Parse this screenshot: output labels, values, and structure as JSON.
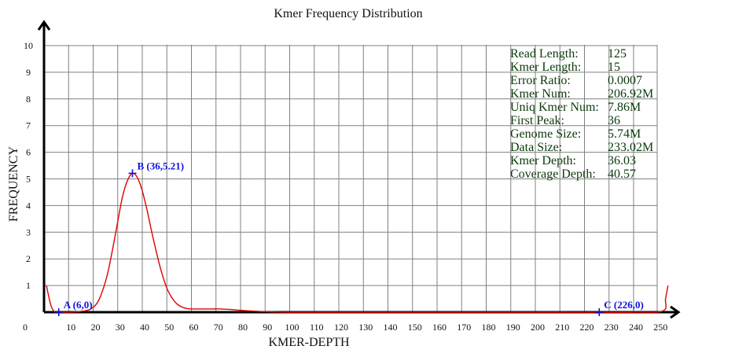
{
  "chart_data": {
    "type": "line",
    "title": "Kmer Frequency Distribution",
    "xlabel": "KMER-DEPTH",
    "ylabel": "FREQUENCY",
    "xlim": [
      0,
      255
    ],
    "ylim": [
      0,
      10
    ],
    "xticks": [
      0,
      10,
      20,
      30,
      40,
      50,
      60,
      70,
      80,
      90,
      100,
      110,
      120,
      130,
      140,
      150,
      160,
      170,
      180,
      190,
      200,
      210,
      220,
      230,
      240,
      250
    ],
    "yticks": [
      1,
      2,
      3,
      4,
      5,
      6,
      7,
      8,
      9,
      10
    ],
    "grid": true,
    "series": [
      {
        "color": "#e00000",
        "x": [
          1,
          2,
          3,
          4,
          5,
          6,
          8,
          10,
          14,
          18,
          20,
          22,
          24,
          26,
          28,
          30,
          32,
          34,
          36,
          38,
          40,
          42,
          44,
          46,
          48,
          50,
          52,
          54,
          56,
          58,
          60,
          64,
          68,
          72,
          76,
          80,
          85,
          90,
          95,
          100,
          120,
          150,
          180,
          210,
          240,
          252,
          253,
          254
        ],
        "y": [
          1.0,
          0.55,
          0.2,
          0.04,
          0.0,
          0.0,
          0.0,
          0.0,
          0.02,
          0.08,
          0.18,
          0.4,
          0.85,
          1.5,
          2.4,
          3.4,
          4.35,
          4.95,
          5.21,
          5.05,
          4.55,
          3.8,
          2.95,
          2.15,
          1.45,
          0.9,
          0.55,
          0.32,
          0.2,
          0.14,
          0.12,
          0.12,
          0.12,
          0.12,
          0.1,
          0.07,
          0.04,
          0.02,
          0.01,
          0.0,
          0.0,
          0.0,
          0.0,
          0.0,
          0.0,
          0.05,
          0.5,
          1.0
        ]
      }
    ],
    "points": [
      {
        "label": "A (6,0)",
        "x": 6,
        "y": 0
      },
      {
        "label": "B (36,5.21)",
        "x": 36,
        "y": 5.21
      },
      {
        "label": "C (226,0)",
        "x": 226,
        "y": 0
      }
    ],
    "stats": [
      {
        "name": "Read Length:",
        "value": "125"
      },
      {
        "name": "Kmer Length:",
        "value": "15"
      },
      {
        "name": "Error Ratio:",
        "value": "0.0007"
      },
      {
        "name": "Kmer Num:",
        "value": "206.92M"
      },
      {
        "name": "Uniq Kmer Num:",
        "value": "7.86M"
      },
      {
        "name": "First Peak:",
        "value": "36"
      },
      {
        "name": "Genome Size:",
        "value": "5.74M"
      },
      {
        "name": "Data Size:",
        "value": "233.02M"
      },
      {
        "name": "Kmer Depth:",
        "value": "36.03"
      },
      {
        "name": "Coverage Depth:",
        "value": "40.57"
      }
    ],
    "colors": {
      "grid": "#808080",
      "axis": "#000000",
      "line": "#e00000",
      "point": "#1010e0",
      "stats_text": "#0a3a0a"
    }
  }
}
